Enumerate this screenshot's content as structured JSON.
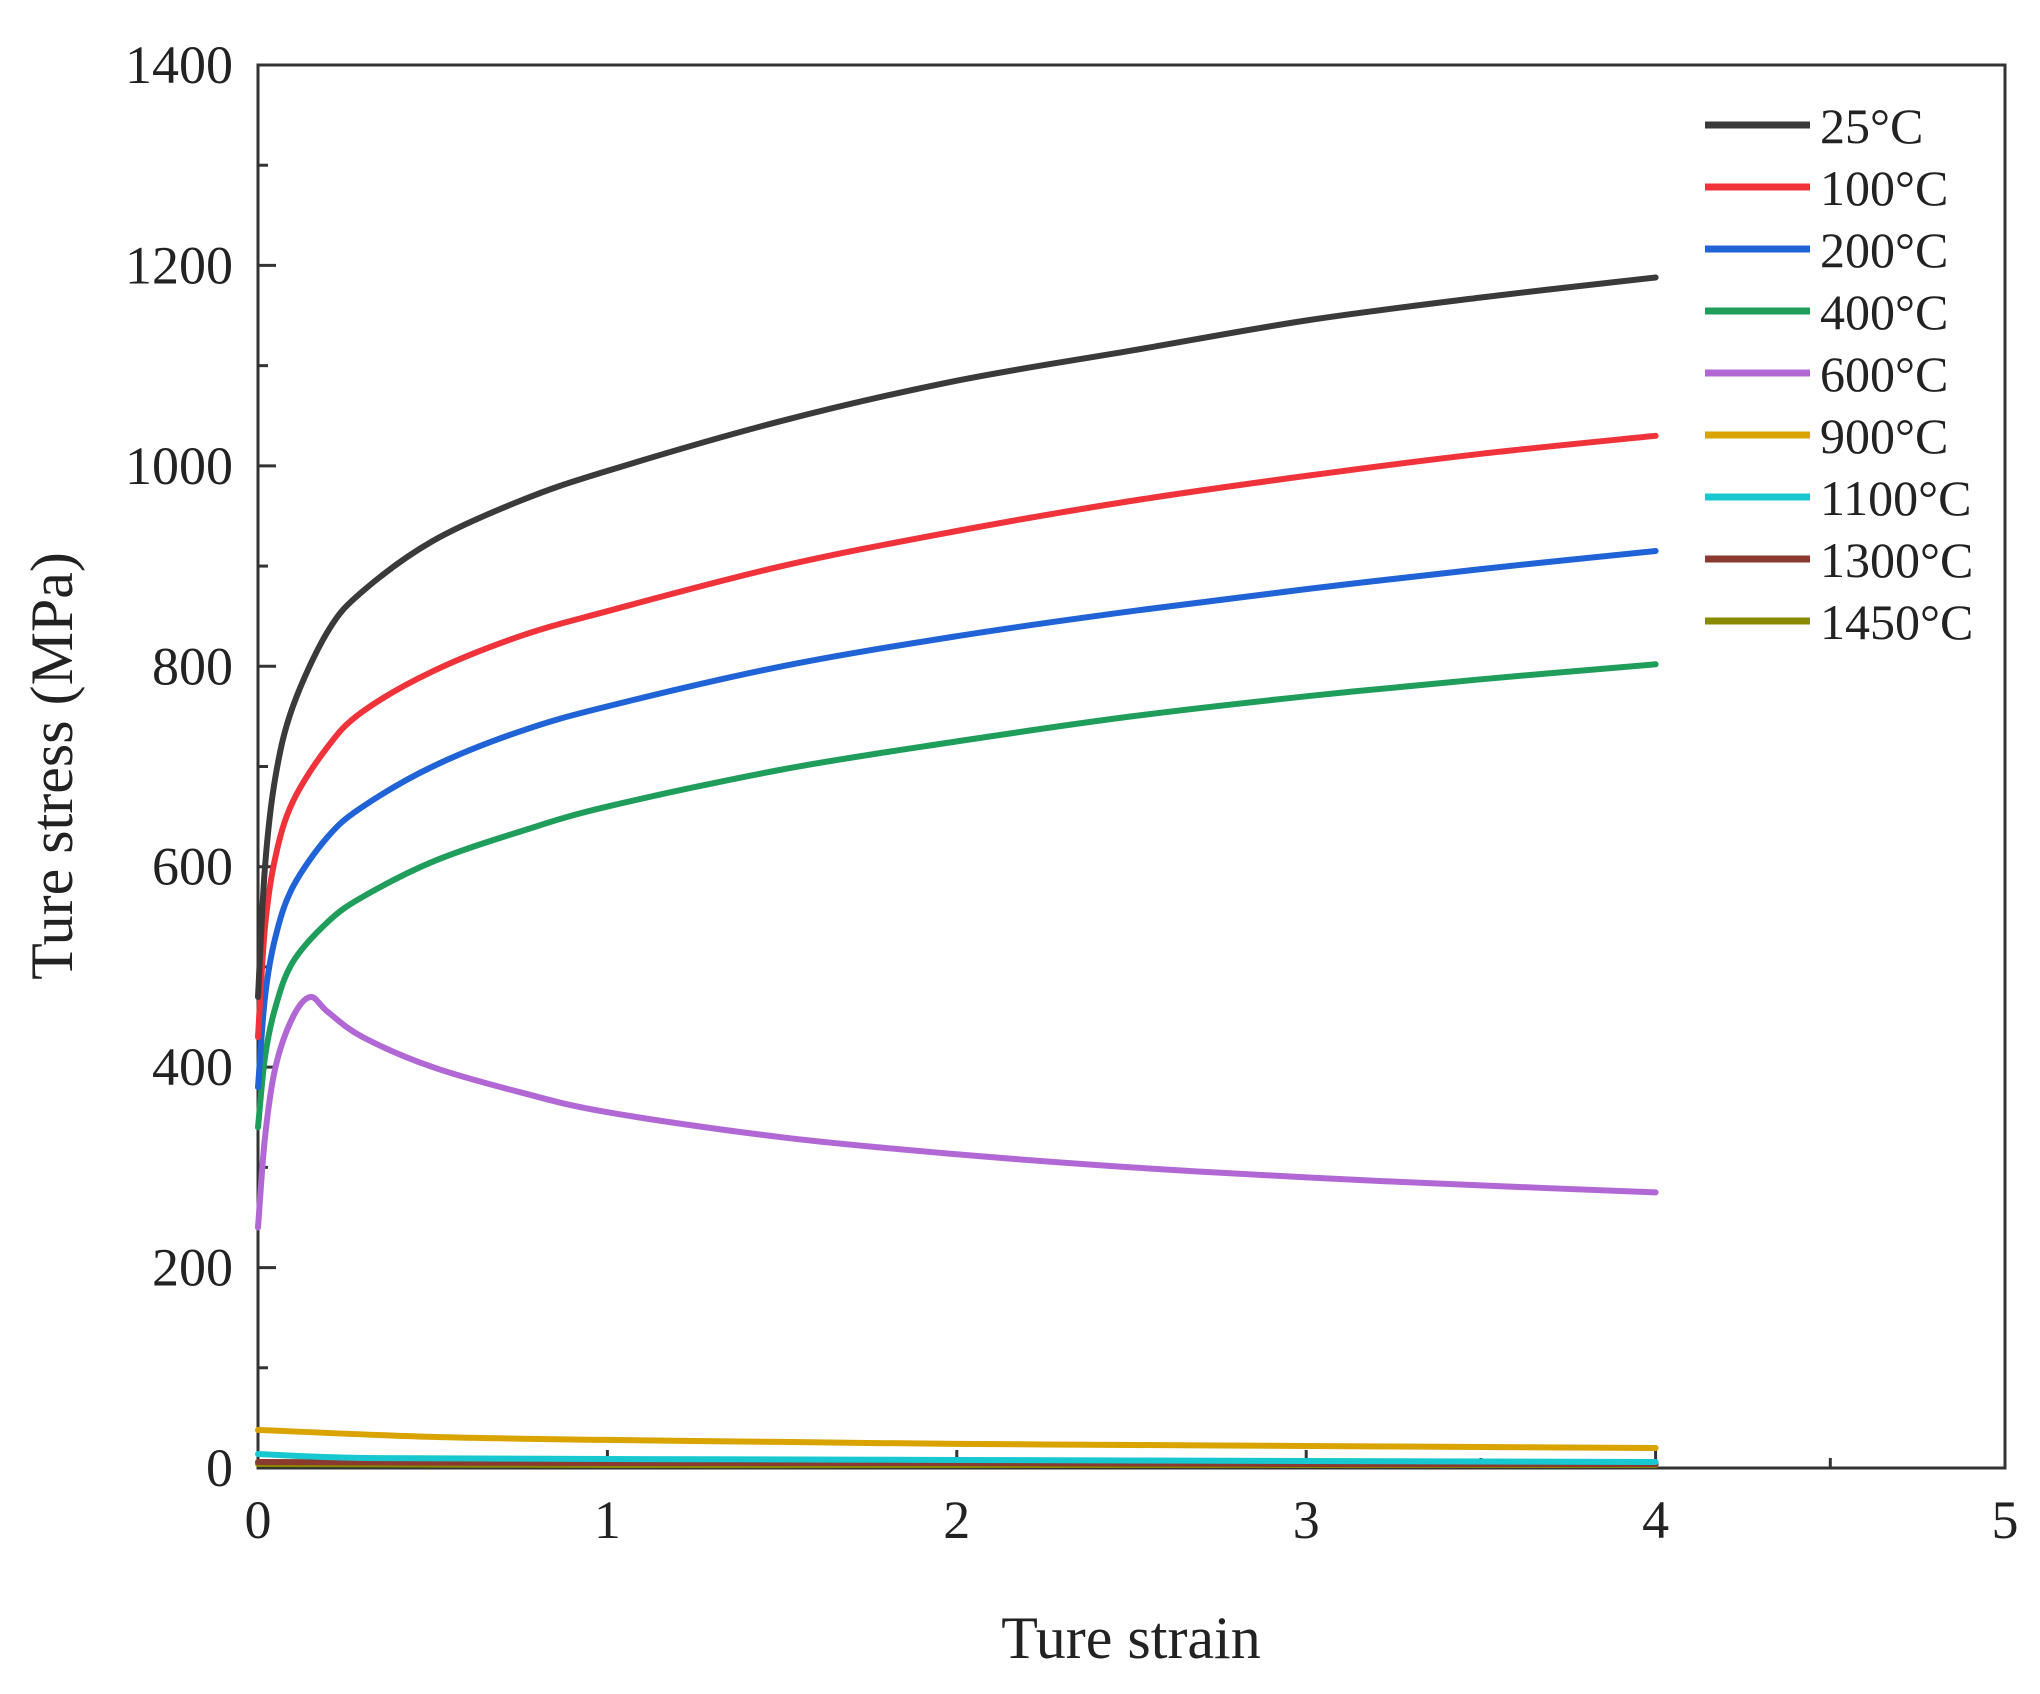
{
  "chart_data": {
    "type": "line",
    "title": "",
    "xlabel": "Ture strain",
    "ylabel": "Ture stress (MPa)",
    "xlim": [
      0,
      5
    ],
    "ylim": [
      0,
      1400
    ],
    "xticks": [
      "0",
      "1",
      "2",
      "3",
      "4",
      "5"
    ],
    "yticks": [
      "0",
      "200",
      "400",
      "600",
      "800",
      "1000",
      "1200",
      "1400"
    ],
    "grid": false,
    "legend_position": "top-right",
    "series": [
      {
        "name": "25°C",
        "color": "#3a3a3a",
        "x": [
          0,
          0.02,
          0.05,
          0.1,
          0.2,
          0.3,
          0.5,
          0.75,
          1.0,
          1.5,
          2.0,
          2.5,
          3.0,
          3.5,
          4.0
        ],
        "y": [
          470,
          600,
          690,
          760,
          835,
          875,
          925,
          965,
          995,
          1045,
          1085,
          1115,
          1145,
          1168,
          1188
        ]
      },
      {
        "name": "100°C",
        "color": "#f0333a",
        "x": [
          0,
          0.02,
          0.05,
          0.1,
          0.2,
          0.3,
          0.5,
          0.75,
          1.0,
          1.5,
          2.0,
          2.5,
          3.0,
          3.5,
          4.0
        ],
        "y": [
          430,
          540,
          610,
          665,
          720,
          755,
          795,
          830,
          855,
          900,
          935,
          965,
          990,
          1012,
          1030
        ]
      },
      {
        "name": "200°C",
        "color": "#1f63d6",
        "x": [
          0,
          0.02,
          0.05,
          0.1,
          0.2,
          0.3,
          0.5,
          0.75,
          1.0,
          1.5,
          2.0,
          2.5,
          3.0,
          3.5,
          4.0
        ],
        "y": [
          380,
          470,
          530,
          580,
          630,
          660,
          700,
          735,
          760,
          800,
          830,
          855,
          877,
          897,
          915
        ]
      },
      {
        "name": "400°C",
        "color": "#1f9d5a",
        "x": [
          0,
          0.02,
          0.05,
          0.1,
          0.2,
          0.3,
          0.5,
          0.75,
          1.0,
          1.5,
          2.0,
          2.5,
          3.0,
          3.5,
          4.0
        ],
        "y": [
          340,
          410,
          460,
          505,
          545,
          570,
          605,
          635,
          660,
          697,
          725,
          750,
          770,
          787,
          802
        ]
      },
      {
        "name": "600°C",
        "color": "#b268d4",
        "x": [
          0,
          0.02,
          0.05,
          0.1,
          0.15,
          0.2,
          0.3,
          0.5,
          0.75,
          1.0,
          1.5,
          2.0,
          2.5,
          3.0,
          3.5,
          4.0
        ],
        "y": [
          240,
          330,
          400,
          450,
          470,
          455,
          430,
          400,
          375,
          355,
          330,
          313,
          300,
          290,
          282,
          275
        ]
      },
      {
        "name": "900°C",
        "color": "#d9a300",
        "x": [
          0,
          0.5,
          1.0,
          1.5,
          2.0,
          2.5,
          3.0,
          3.5,
          4.0
        ],
        "y": [
          38,
          31,
          28,
          26,
          24,
          23,
          22,
          21,
          20
        ]
      },
      {
        "name": "1100°C",
        "color": "#18c8d0",
        "x": [
          0,
          0.3,
          1.0,
          2.0,
          3.0,
          4.0
        ],
        "y": [
          14,
          10,
          9,
          8,
          7,
          6
        ]
      },
      {
        "name": "1300°C",
        "color": "#8a3a2e",
        "x": [
          0,
          1.0,
          2.0,
          3.0,
          4.0
        ],
        "y": [
          6,
          5,
          5,
          4,
          4
        ]
      },
      {
        "name": "1450°C",
        "color": "#8a8a00",
        "x": [
          0,
          1.0,
          2.0,
          3.0,
          4.0
        ],
        "y": [
          4,
          3,
          3,
          3,
          3
        ]
      }
    ]
  }
}
